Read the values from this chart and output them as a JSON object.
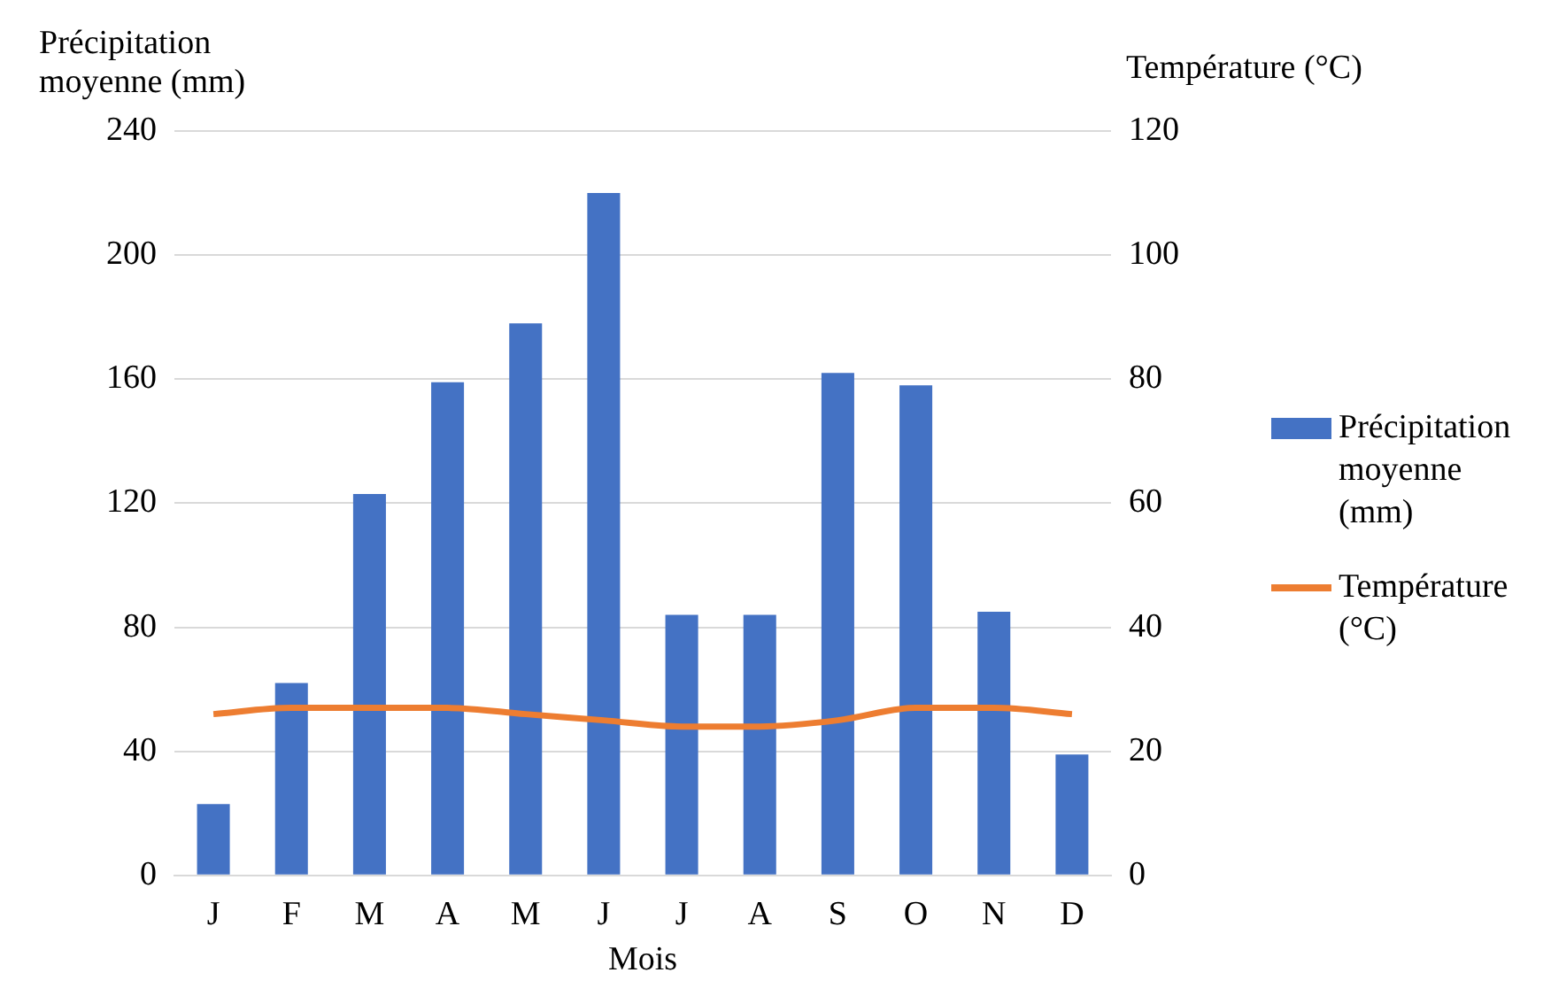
{
  "chart_data": {
    "type": "bar",
    "xlabel": "Mois",
    "ylabel": "Précipitation moyenne (mm)",
    "y2label": "Température (°C)",
    "categories": [
      "J",
      "F",
      "M",
      "A",
      "M",
      "J",
      "J",
      "A",
      "S",
      "O",
      "N",
      "D"
    ],
    "series": [
      {
        "name": "Précipitation moyenne (mm)",
        "color": "#4472c4",
        "values": [
          23,
          62,
          123,
          159,
          178,
          220,
          84,
          84,
          162,
          158,
          85,
          39
        ]
      },
      {
        "name": "Température (°C)",
        "type": "line",
        "axis": "y2",
        "color": "#ed7d31",
        "values": [
          26,
          27,
          27,
          27,
          26,
          25,
          24,
          24,
          25,
          27,
          27,
          26
        ]
      }
    ],
    "ylim": [
      0,
      240
    ],
    "yticks": [
      0,
      40,
      80,
      120,
      160,
      200,
      240
    ],
    "y2lim": [
      0,
      120
    ],
    "y2ticks": [
      0,
      20,
      40,
      60,
      80,
      100,
      120
    ],
    "grid": "y",
    "legend": "right",
    "marker": "none",
    "line_style": "solid"
  }
}
